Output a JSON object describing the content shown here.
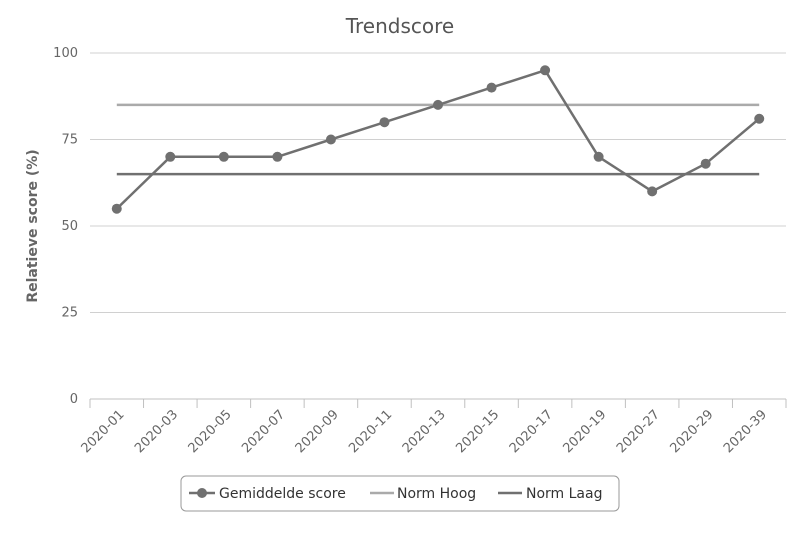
{
  "chart_data": {
    "type": "line",
    "title": "Trendscore",
    "xlabel": "",
    "ylabel": "Relatieve score (%)",
    "ylim": [
      0,
      100
    ],
    "yticks": [
      0,
      25,
      50,
      75,
      100
    ],
    "categories": [
      "2020-01",
      "2020-03",
      "2020-05",
      "2020-07",
      "2020-09",
      "2020-11",
      "2020-13",
      "2020-15",
      "2020-17",
      "2020-19",
      "2020-27",
      "2020-29",
      "2020-39"
    ],
    "series": [
      {
        "name": "Gemiddelde score",
        "values": [
          55,
          70,
          70,
          70,
          75,
          80,
          85,
          90,
          95,
          70,
          60,
          68,
          81
        ],
        "color": "#707070",
        "markers": true
      },
      {
        "name": "Norm Hoog",
        "values": [
          85,
          85,
          85,
          85,
          85,
          85,
          85,
          85,
          85,
          85,
          85,
          85,
          85
        ],
        "color": "#aaaaaa",
        "markers": false
      },
      {
        "name": "Norm Laag",
        "values": [
          65,
          65,
          65,
          65,
          65,
          65,
          65,
          65,
          65,
          65,
          65,
          65,
          65
        ],
        "color": "#707070",
        "markers": false
      }
    ],
    "grid": true,
    "legend_position": "bottom-center"
  }
}
